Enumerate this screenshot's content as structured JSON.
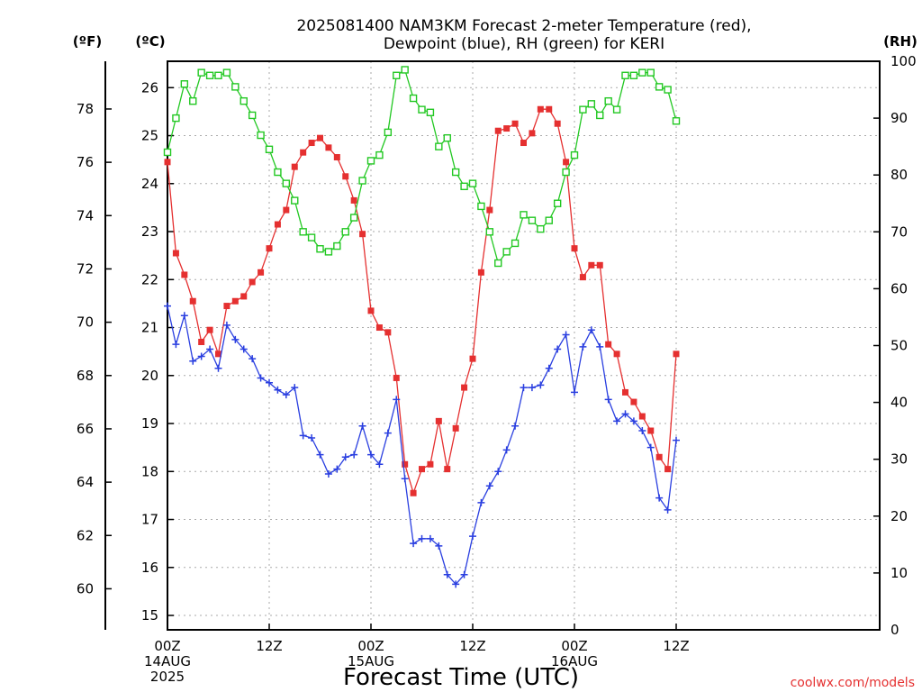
{
  "chart_data": {
    "type": "line",
    "title_line1": "2025081400 NAM3KM Forecast 2-meter Temperature (red),",
    "title_line2": "Dewpoint (blue), RH (green) for KERI",
    "xlabel": "Forecast Time (UTC)",
    "credit": "coolwx.com/models",
    "units": {
      "f": "(ºF)",
      "c": "(ºC)",
      "rh": "(RH)"
    },
    "x_range_hours": [
      0,
      84
    ],
    "x_ticks": [
      {
        "h": 0,
        "l1": "00Z",
        "l2": "14AUG",
        "l3": "2025"
      },
      {
        "h": 12,
        "l1": "12Z",
        "l2": "",
        "l3": ""
      },
      {
        "h": 24,
        "l1": "00Z",
        "l2": "15AUG",
        "l3": ""
      },
      {
        "h": 36,
        "l1": "12Z",
        "l2": "",
        "l3": ""
      },
      {
        "h": 48,
        "l1": "00Z",
        "l2": "16AUG",
        "l3": ""
      },
      {
        "h": 60,
        "l1": "12Z",
        "l2": "",
        "l3": ""
      }
    ],
    "c_range": [
      14.7,
      26.55
    ],
    "c_ticks": [
      15,
      16,
      17,
      18,
      19,
      20,
      21,
      22,
      23,
      24,
      25,
      26
    ],
    "f_ticks": [
      60,
      62,
      64,
      66,
      68,
      70,
      72,
      74,
      76,
      78
    ],
    "rh_range": [
      0,
      100
    ],
    "rh_ticks": [
      0,
      10,
      20,
      30,
      40,
      50,
      60,
      70,
      80,
      90,
      100
    ],
    "grid": true,
    "series": [
      {
        "name": "2-meter Temperature",
        "color": "#e53030",
        "marker": "filled-square",
        "axis": "c",
        "values": [
          24.45,
          22.55,
          22.1,
          21.55,
          20.7,
          20.95,
          20.45,
          21.45,
          21.55,
          21.65,
          21.95,
          22.15,
          22.65,
          23.15,
          23.45,
          24.35,
          24.65,
          24.85,
          24.95,
          24.75,
          24.55,
          24.15,
          23.65,
          22.95,
          21.35,
          21.0,
          20.9,
          19.95,
          18.15,
          17.55,
          18.05,
          18.15,
          19.05,
          18.05,
          18.9,
          19.75,
          20.35,
          22.15,
          23.45,
          25.1,
          25.15,
          25.25,
          24.85,
          25.05,
          25.55,
          25.55,
          25.25,
          24.45,
          22.65,
          22.05,
          22.3,
          22.3,
          20.65,
          20.45,
          19.65,
          19.45,
          19.15,
          18.85,
          18.3,
          18.05,
          20.45
        ]
      },
      {
        "name": "Dewpoint",
        "color": "#2a3fe0",
        "marker": "plus",
        "axis": "c",
        "values": [
          21.45,
          20.65,
          21.25,
          20.3,
          20.4,
          20.55,
          20.15,
          21.05,
          20.75,
          20.55,
          20.35,
          19.95,
          19.85,
          19.7,
          19.6,
          19.75,
          18.75,
          18.7,
          18.35,
          17.95,
          18.05,
          18.3,
          18.35,
          18.95,
          18.35,
          18.15,
          18.8,
          19.5,
          17.85,
          16.5,
          16.6,
          16.6,
          16.45,
          15.85,
          15.65,
          15.85,
          16.65,
          17.35,
          17.7,
          18.0,
          18.45,
          18.95,
          19.75,
          19.75,
          19.8,
          20.15,
          20.55,
          20.85,
          19.65,
          20.6,
          20.95,
          20.6,
          19.5,
          19.05,
          19.2,
          19.05,
          18.85,
          18.5,
          17.45,
          17.2,
          18.65
        ]
      },
      {
        "name": "RH",
        "color": "#22c822",
        "marker": "open-square",
        "axis": "rh",
        "values": [
          84,
          90,
          96,
          93,
          98,
          97.5,
          97.5,
          98,
          95.5,
          93,
          90.5,
          87,
          84.5,
          80.5,
          78.5,
          75.5,
          70,
          69,
          67,
          66.5,
          67.5,
          70,
          72.5,
          79,
          82.5,
          83.5,
          87.5,
          97.5,
          98.5,
          93.5,
          91.5,
          91,
          85,
          86.5,
          80.5,
          78,
          78.5,
          74.5,
          70,
          64.5,
          66.5,
          68,
          73,
          72,
          70.5,
          72,
          75,
          80.5,
          83.5,
          91.5,
          92.5,
          90.5,
          93,
          91.5,
          97.5,
          97.5,
          98,
          98,
          95.5,
          95,
          89.5
        ]
      }
    ]
  }
}
